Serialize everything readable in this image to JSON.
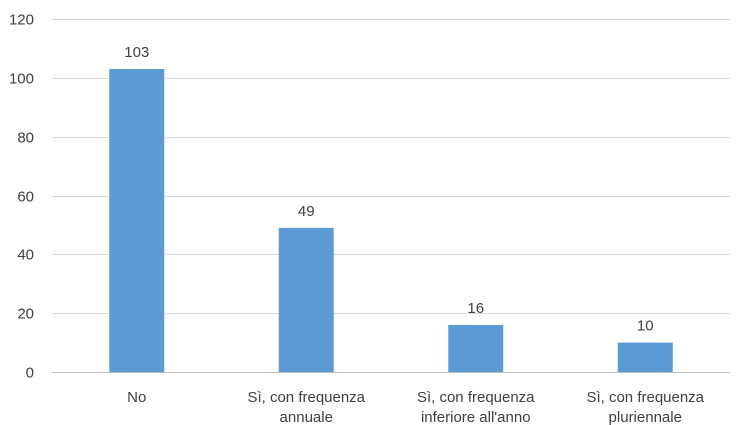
{
  "chart_data": {
    "type": "bar",
    "categories": [
      [
        "No"
      ],
      [
        "Sì, con frequenza",
        "annuale"
      ],
      [
        "Sì, con frequenza",
        "inferiore all'anno"
      ],
      [
        "Sì, con frequenza",
        "pluriennale"
      ]
    ],
    "values": [
      103,
      49,
      16,
      10
    ],
    "data_labels": [
      "103",
      "49",
      "16",
      "10"
    ],
    "title": "",
    "xlabel": "",
    "ylabel": "",
    "ylim": [
      0,
      120
    ],
    "yticks": [
      0,
      20,
      40,
      60,
      80,
      100,
      120
    ],
    "ytick_labels": [
      "0",
      "20",
      "40",
      "60",
      "80",
      "100",
      "120"
    ],
    "grid": true,
    "legend": "none",
    "bar_color": "#5b9bd5",
    "grid_color": "#d9d9d9",
    "text_color": "#404040"
  }
}
